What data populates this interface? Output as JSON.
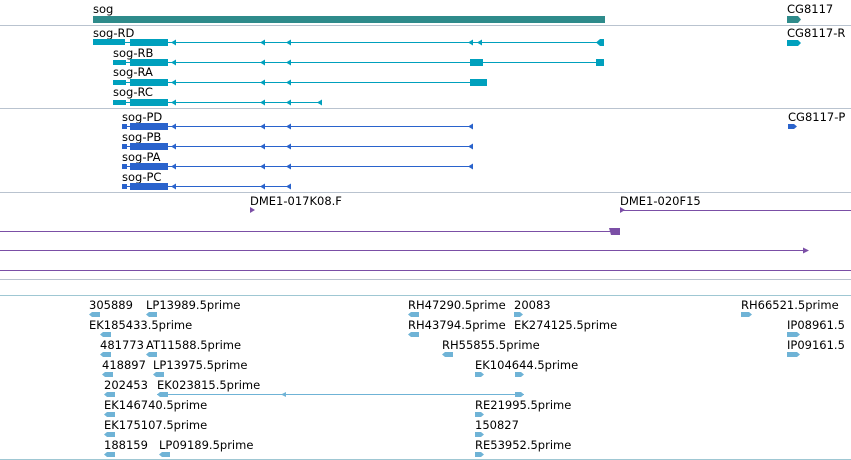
{
  "genes": {
    "sog": {
      "name": "sog",
      "transcripts": [
        "sog-RD",
        "sog-RB",
        "sog-RA",
        "sog-RC"
      ],
      "proteins": [
        "sog-PD",
        "sog-PB",
        "sog-PA",
        "sog-PC"
      ]
    },
    "cg8117": {
      "name": "CG8117",
      "transcript": "CG8117-R",
      "protein": "CG8117-P"
    }
  },
  "clones": [
    "DME1-017K08.F",
    "DME1-020F15"
  ],
  "ests": [
    "305889",
    "LP13989.5prime",
    "RH47290.5prime",
    "20083",
    "RH66521.5prime",
    "EK185433.5prime",
    "RH43794.5prime",
    "EK274125.5prime",
    "IP08961.5",
    "481773",
    "AT11588.5prime",
    "RH55855.5prime",
    "IP09161.5",
    "418897",
    "LP13975.5prime",
    "EK104644.5prime",
    "202453",
    "EK023815.5prime",
    "EK146740.5prime",
    "RE21995.5prime",
    "EK175107.5prime",
    "150827",
    "188159",
    "LP09189.5prime",
    "RE53952.5prime"
  ],
  "colors": {
    "gene_span": "#2e8b8b",
    "transcript": "#00a0bd",
    "protein": "#2a63cc",
    "clone": "#7b4fa6",
    "est": "#6fb3d6",
    "separator": "#b9c3cf"
  }
}
